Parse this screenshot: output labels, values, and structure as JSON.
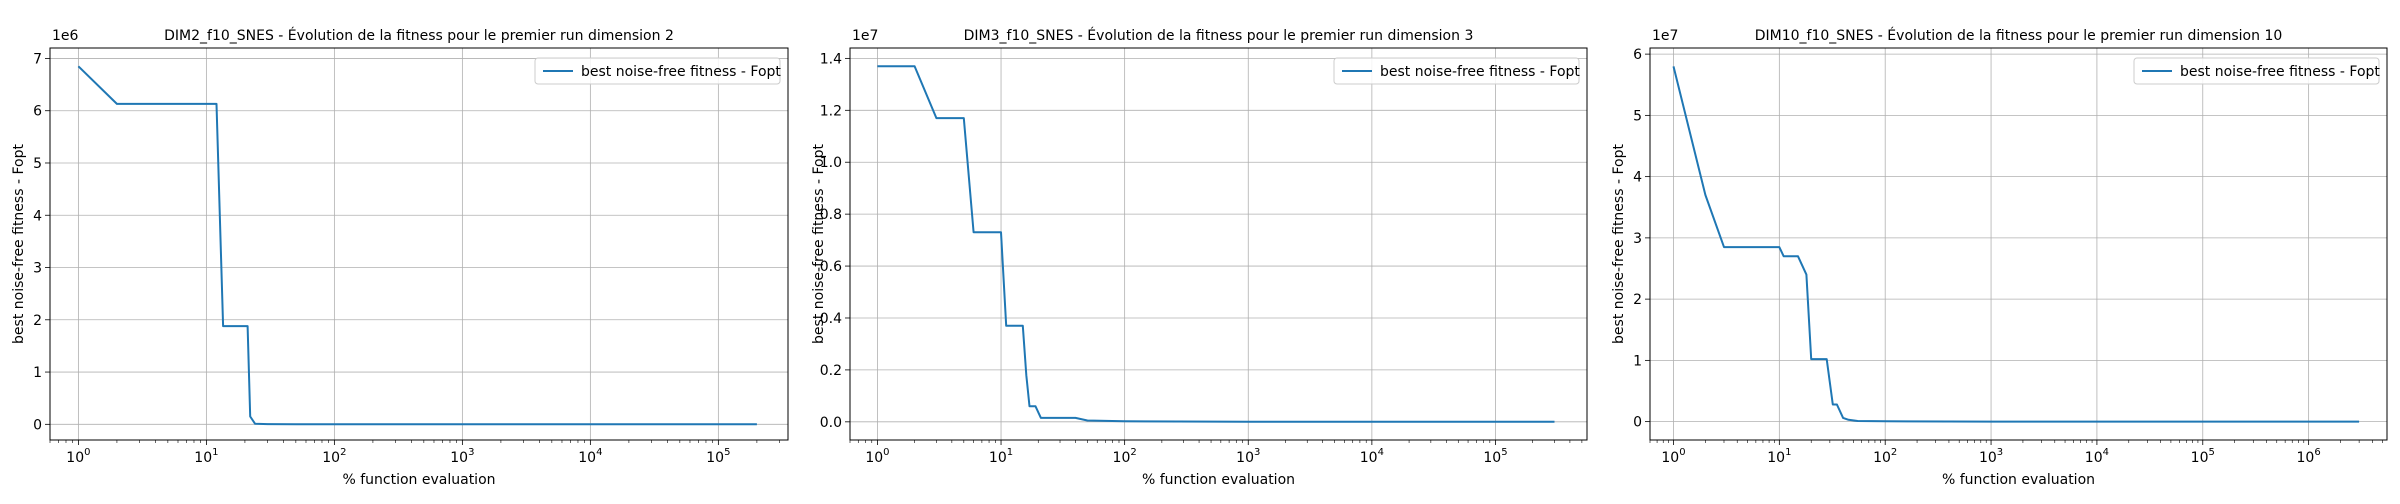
{
  "chart_data": [
    {
      "type": "line",
      "title": "DIM2_f10_SNES - Évolution de la fitness pour le premier run dimension 2",
      "xlabel": "% function evaluation",
      "ylabel": "best noise-free fitness - Fopt",
      "xscale": "log",
      "xlim": [
        0.6,
        350000
      ],
      "ylim": [
        -300000,
        7200000
      ],
      "offset_text": "1e6",
      "y_scale_factor": 1000000,
      "y_ticks": [
        0,
        1,
        2,
        3,
        4,
        5,
        6,
        7
      ],
      "x_tick_exponents": [
        0,
        1,
        2,
        3,
        4,
        5
      ],
      "grid": true,
      "legend_position": "top-right",
      "series": [
        {
          "name": "best noise-free fitness - Fopt",
          "color": "#1f77b4",
          "x": [
            1,
            2,
            4,
            8,
            12,
            13.5,
            15,
            18,
            21,
            22,
            24,
            30,
            50,
            100,
            1000,
            10000,
            100000,
            200000
          ],
          "y": [
            6850000,
            6130000,
            6130000,
            6130000,
            6130000,
            1880000,
            1880000,
            1880000,
            1880000,
            150000,
            10000,
            5000,
            2000,
            1000,
            500,
            200,
            100,
            50
          ]
        }
      ]
    },
    {
      "type": "line",
      "title": "DIM3_f10_SNES - Évolution de la fitness pour le premier run dimension 3",
      "xlabel": "% function evaluation",
      "ylabel": "best noise-free fitness - Fopt",
      "xscale": "log",
      "xlim": [
        0.6,
        550000
      ],
      "ylim": [
        -700000,
        14400000
      ],
      "offset_text": "1e7",
      "y_scale_factor": 10000000,
      "y_ticks": [
        0.0,
        0.2,
        0.4,
        0.6,
        0.8,
        1.0,
        1.2,
        1.4
      ],
      "x_tick_exponents": [
        0,
        1,
        2,
        3,
        4,
        5
      ],
      "grid": true,
      "legend_position": "top-right",
      "series": [
        {
          "name": "best noise-free fitness - Fopt",
          "color": "#1f77b4",
          "x": [
            1,
            2,
            3,
            4,
            5,
            6,
            8,
            10,
            11,
            15,
            16,
            17,
            19,
            21,
            24,
            30,
            40,
            50,
            100,
            1000,
            10000,
            100000,
            300000
          ],
          "y": [
            13700000,
            13700000,
            11700000,
            11700000,
            11700000,
            7300000,
            7300000,
            7300000,
            3700000,
            3700000,
            1800000,
            600000,
            600000,
            150000,
            150000,
            150000,
            150000,
            50000,
            20000,
            5000,
            2000,
            1000,
            500
          ]
        }
      ]
    },
    {
      "type": "line",
      "title": "DIM10_f10_SNES - Évolution de la fitness pour le premier run dimension 10",
      "xlabel": "% function evaluation",
      "ylabel": "best noise-free fitness - Fopt",
      "xscale": "log",
      "xlim": [
        0.6,
        5500000
      ],
      "ylim": [
        -3000000,
        61000000
      ],
      "offset_text": "1e7",
      "y_scale_factor": 10000000,
      "y_ticks": [
        0,
        1,
        2,
        3,
        4,
        5,
        6
      ],
      "x_tick_exponents": [
        0,
        1,
        2,
        3,
        4,
        5,
        6
      ],
      "grid": true,
      "legend_position": "top-right",
      "series": [
        {
          "name": "best noise-free fitness - Fopt",
          "color": "#1f77b4",
          "x": [
            1,
            2,
            3,
            4,
            5,
            8,
            10,
            11,
            15,
            18,
            20,
            21,
            28,
            32,
            35,
            40,
            45,
            55,
            100,
            1000,
            10000,
            100000,
            1000000,
            3000000
          ],
          "y": [
            58000000,
            37000000,
            28500000,
            28500000,
            28500000,
            28500000,
            28500000,
            27000000,
            27000000,
            24000000,
            10200000,
            10200000,
            10200000,
            2800000,
            2800000,
            600000,
            300000,
            100000,
            50000,
            10000,
            5000,
            2000,
            1000,
            500
          ]
        }
      ]
    }
  ]
}
